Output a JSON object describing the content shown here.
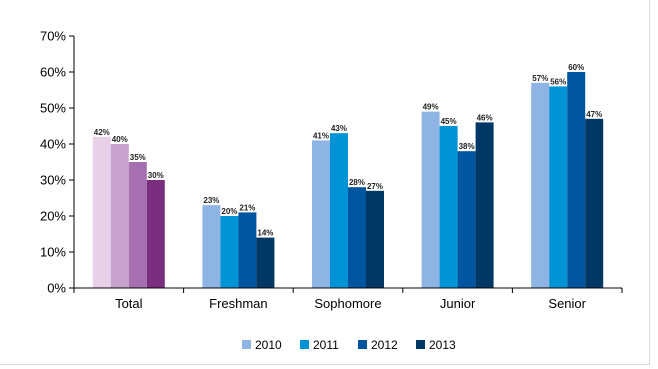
{
  "chart_data": {
    "type": "bar",
    "categories": [
      "Total",
      "Freshman",
      "Sophomore",
      "Junior",
      "Senior"
    ],
    "series": [
      {
        "name": "2010",
        "values": [
          42,
          23,
          41,
          49,
          57
        ],
        "color": "#8db4e2"
      },
      {
        "name": "2011",
        "values": [
          40,
          20,
          43,
          45,
          56
        ],
        "color": "#0093d5"
      },
      {
        "name": "2012",
        "values": [
          35,
          21,
          28,
          38,
          60
        ],
        "color": "#0055a0"
      },
      {
        "name": "2013",
        "values": [
          30,
          14,
          27,
          46,
          47
        ],
        "color": "#003865"
      }
    ],
    "total_colors": [
      "#e8d0e8",
      "#c9a3cf",
      "#a66fb0",
      "#7a2e80"
    ],
    "ylim": [
      0,
      70
    ],
    "yticks": [
      0,
      10,
      20,
      30,
      40,
      50,
      60,
      70
    ],
    "value_suffix": "%",
    "legend_position": "bottom-center",
    "grid": false
  }
}
